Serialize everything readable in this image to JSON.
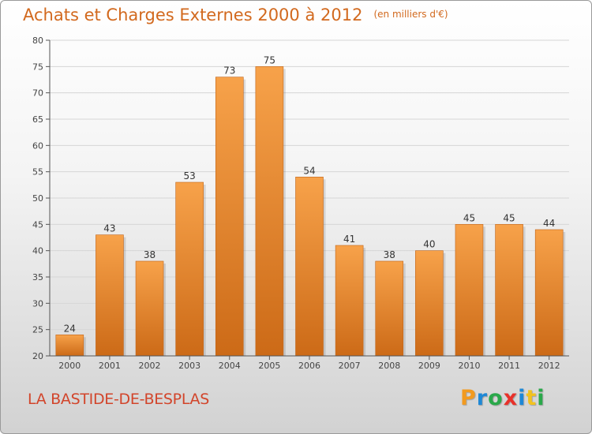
{
  "header": {
    "title": "Achats et Charges Externes 2000 à 2012",
    "unit": "(en milliers d'€)"
  },
  "footer": {
    "place": "LA BASTIDE-DE-BESPLAS",
    "brand_letters": [
      "P",
      "r",
      "o",
      "x",
      "i",
      "t",
      "i"
    ],
    "brand_colors": [
      "#f29a1f",
      "#1e88d6",
      "#2aa84a",
      "#e8312a",
      "#1e88d6",
      "#f2c21f",
      "#2aa84a"
    ]
  },
  "colors": {
    "bar_light": "#f7a24a",
    "bar_dark": "#cc6a17",
    "title": "#d2691e"
  },
  "chart_data": {
    "type": "bar",
    "title": "Achats et Charges Externes 2000 à 2012",
    "subtitle": "(en milliers d'€)",
    "categories": [
      "2000",
      "2001",
      "2002",
      "2003",
      "2004",
      "2005",
      "2006",
      "2007",
      "2008",
      "2009",
      "2010",
      "2011",
      "2012"
    ],
    "values": [
      24,
      43,
      38,
      53,
      73,
      75,
      54,
      41,
      38,
      40,
      45,
      45,
      44
    ],
    "ylim": [
      20,
      80
    ],
    "yticks": [
      "20",
      "25",
      "30",
      "35",
      "40",
      "45",
      "50",
      "55",
      "60",
      "65",
      "70",
      "75",
      "80"
    ],
    "grid": true,
    "xlabel": "",
    "ylabel": ""
  }
}
